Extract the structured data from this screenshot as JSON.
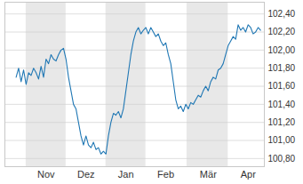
{
  "chart_data": {
    "type": "line",
    "color": "#1f77b4",
    "grid": true,
    "categories": [
      null,
      null,
      null,
      null,
      null,
      null,
      null,
      null,
      null,
      null,
      null,
      null,
      "Nov",
      null,
      null,
      null,
      null,
      null,
      null,
      null,
      null,
      null,
      null,
      null,
      null,
      null,
      null,
      null,
      "Dez",
      null,
      null,
      null,
      null,
      null,
      null,
      null,
      null,
      null,
      null,
      null,
      null,
      null,
      null,
      null,
      "Jan",
      null,
      null,
      null,
      null,
      null,
      null,
      null,
      null,
      null,
      null,
      null,
      null,
      null,
      null,
      null,
      "Feb",
      null,
      null,
      null,
      null,
      null,
      null,
      null,
      null,
      null,
      null,
      null,
      null,
      null,
      null,
      null,
      null,
      "Mär",
      null,
      null,
      null,
      null,
      null,
      null,
      null,
      null,
      null,
      null,
      null,
      null,
      null,
      null,
      null,
      "Apr",
      null,
      null,
      null,
      null,
      null
    ],
    "values": [
      101.7,
      101.8,
      101.65,
      101.78,
      101.62,
      101.75,
      101.72,
      101.8,
      101.75,
      101.68,
      101.82,
      101.7,
      101.9,
      101.85,
      101.95,
      101.9,
      101.88,
      101.95,
      102.0,
      102.02,
      101.9,
      101.7,
      101.55,
      101.4,
      101.35,
      101.2,
      101.05,
      100.95,
      101.05,
      100.95,
      100.92,
      100.98,
      100.9,
      100.92,
      100.85,
      100.88,
      100.85,
      101.05,
      101.2,
      101.3,
      101.28,
      101.32,
      101.25,
      101.35,
      101.55,
      101.75,
      101.95,
      102.1,
      102.2,
      102.25,
      102.18,
      102.22,
      102.25,
      102.18,
      102.25,
      102.2,
      102.15,
      102.18,
      102.1,
      102.05,
      102.08,
      101.95,
      101.85,
      101.65,
      101.45,
      101.35,
      101.38,
      101.32,
      101.4,
      101.35,
      101.42,
      101.4,
      101.45,
      101.5,
      101.48,
      101.55,
      101.6,
      101.55,
      101.65,
      101.7,
      101.68,
      101.78,
      101.8,
      101.85,
      101.95,
      102.05,
      102.1,
      102.15,
      102.12,
      102.28,
      102.22,
      102.25,
      102.2,
      102.28,
      102.25,
      102.18,
      102.2,
      102.25,
      102.22
    ],
    "ylim": [
      100.71,
      102.53
    ],
    "yticks": [
      {
        "value": 100.8,
        "label": "100,80"
      },
      {
        "value": 101.0,
        "label": "101,00"
      },
      {
        "value": 101.2,
        "label": "101,20"
      },
      {
        "value": 101.4,
        "label": "101,40"
      },
      {
        "value": 101.6,
        "label": "101,60"
      },
      {
        "value": 101.8,
        "label": "101,80"
      },
      {
        "value": 102.0,
        "label": "102,00"
      },
      {
        "value": 102.2,
        "label": "102,20"
      },
      {
        "value": 102.4,
        "label": "102,40"
      }
    ]
  }
}
